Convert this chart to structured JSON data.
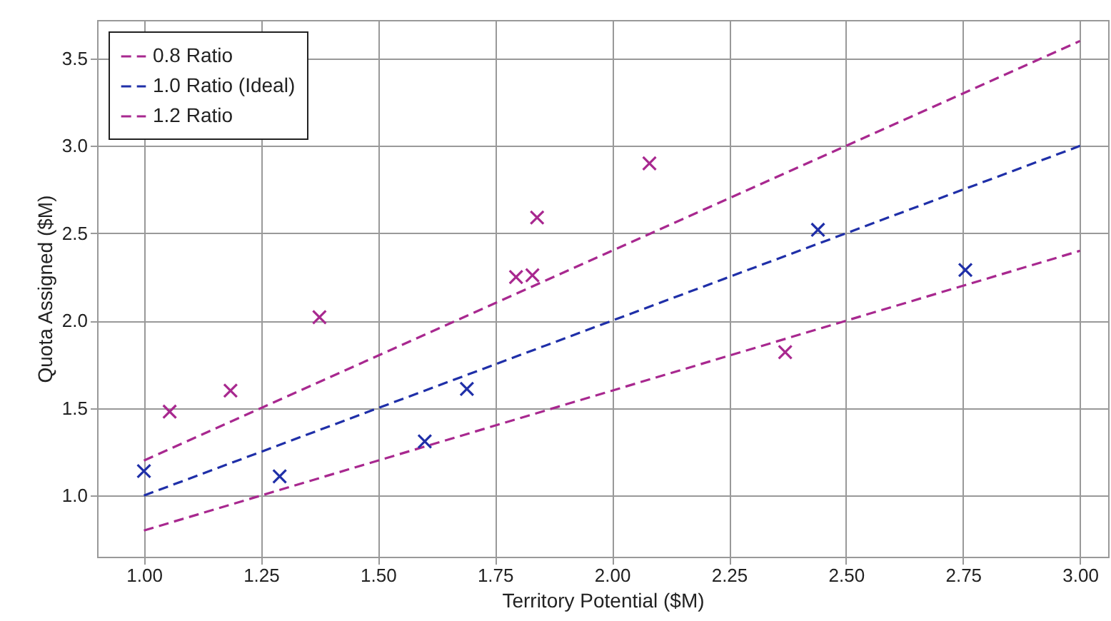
{
  "chart_data": {
    "type": "scatter",
    "xlabel": "Territory Potential ($M)",
    "ylabel": "Quota Assigned ($M)",
    "xlim": [
      0.9,
      3.06
    ],
    "ylim": [
      0.65,
      3.72
    ],
    "xticks": [
      {
        "value": 1,
        "label": "1.00"
      },
      {
        "value": 1.25,
        "label": "1.25"
      },
      {
        "value": 1.5,
        "label": "1.50"
      },
      {
        "value": 1.75,
        "label": "1.75"
      },
      {
        "value": 2,
        "label": "2.00"
      },
      {
        "value": 2.25,
        "label": "2.25"
      },
      {
        "value": 2.5,
        "label": "2.50"
      },
      {
        "value": 2.75,
        "label": "2.75"
      },
      {
        "value": 3,
        "label": "3.00"
      }
    ],
    "yticks": [
      {
        "value": 1,
        "label": "1.0"
      },
      {
        "value": 1.5,
        "label": "1.5"
      },
      {
        "value": 2,
        "label": "2.0"
      },
      {
        "value": 2.5,
        "label": "2.5"
      },
      {
        "value": 3,
        "label": "3.0"
      },
      {
        "value": 3.5,
        "label": "3.5"
      }
    ],
    "grid": true,
    "legend": "top left",
    "series": [
      {
        "type": "line",
        "name": "0.8 Ratio",
        "color": "#a8288f",
        "line_style": "dashed",
        "marker": "none",
        "x": [
          1,
          3
        ],
        "values": [
          1.2,
          3.6
        ]
      },
      {
        "type": "line",
        "name": "1.0 Ratio (Ideal)",
        "color": "#1f2fa8",
        "line_style": "dashed",
        "marker": "none",
        "x": [
          1,
          3
        ],
        "values": [
          1.0,
          3.0
        ]
      },
      {
        "type": "line",
        "name": "1.2 Ratio",
        "color": "#a8288f",
        "line_style": "dashed",
        "marker": "none",
        "x": [
          1,
          3
        ],
        "values": [
          0.8,
          2.4
        ]
      },
      {
        "type": "scatter",
        "color": "#a8288f",
        "marker": "cross",
        "x": [
          1.055,
          1.185,
          1.375,
          1.795,
          1.83,
          1.84,
          2.08,
          2.37
        ],
        "values": [
          1.48,
          1.6,
          2.02,
          2.25,
          2.26,
          2.59,
          2.9,
          1.82
        ]
      },
      {
        "type": "scatter",
        "color": "#1f2fa8",
        "marker": "cross",
        "x": [
          1.0,
          1.29,
          1.6,
          1.69,
          2.44,
          2.755
        ],
        "values": [
          1.14,
          1.11,
          1.31,
          1.61,
          2.52,
          2.29
        ]
      }
    ]
  }
}
